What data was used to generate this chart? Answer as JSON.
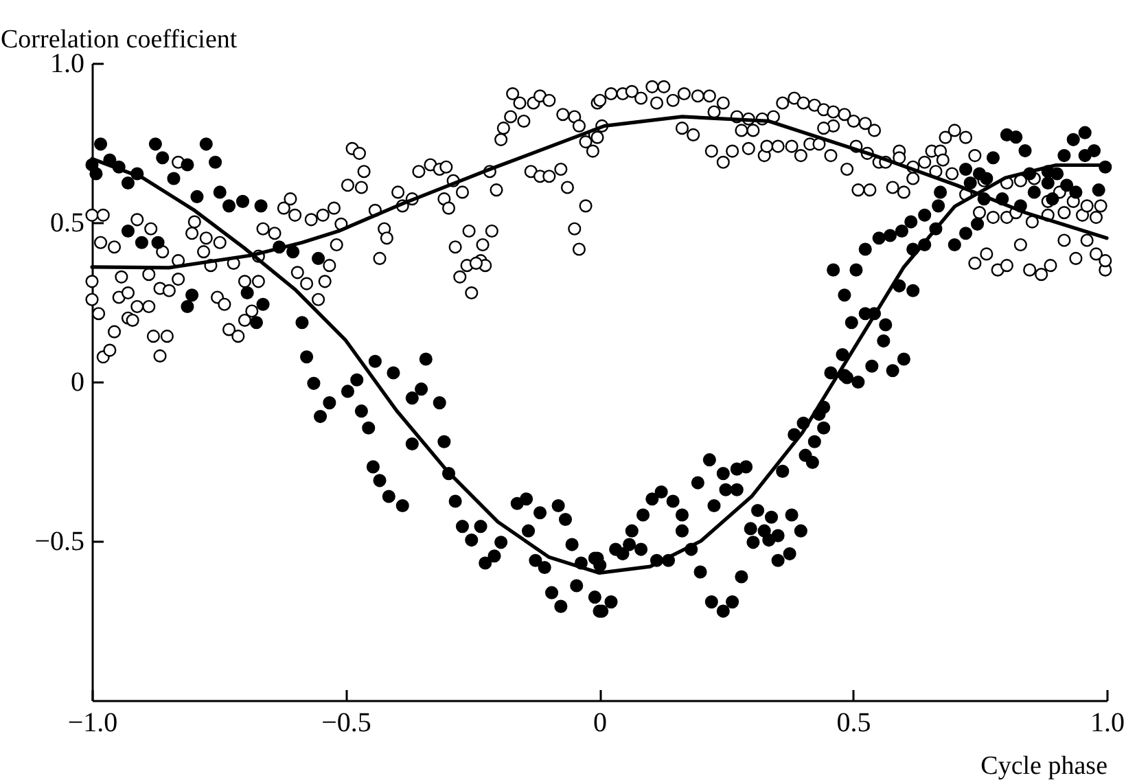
{
  "chart_data": {
    "type": "scatter",
    "xlabel": "Cycle phase",
    "ylabel": "Correlation coefficient",
    "marker": "circle",
    "xlim": [
      -1,
      1
    ],
    "ylim": [
      -1,
      1
    ],
    "xticks": [
      {
        "value": -1,
        "label": "−1.0"
      },
      {
        "value": -0.5,
        "label": "−0.5"
      },
      0,
      {
        "value": 0.5,
        "label": "0.5"
      },
      {
        "value": 1,
        "label": "1.0"
      }
    ],
    "yticks": [
      {
        "value": 1,
        "label": "1.0"
      },
      {
        "value": 0.5,
        "label": "0.5"
      },
      0,
      {
        "value": -0.5,
        "label": "−0.5"
      }
    ],
    "series": [
      {
        "color": "#ffffff",
        "x": [
          -1.0,
          -0.978,
          -1.0,
          -1.0,
          -0.987,
          -0.978,
          -0.965,
          -0.956,
          -0.983,
          -0.956,
          -0.947,
          -0.929,
          -0.929,
          -0.942,
          -0.92,
          -0.911,
          -0.888,
          -0.879,
          -0.866,
          -0.852,
          -0.866,
          -0.848,
          -0.83,
          -0.888,
          -0.884,
          -0.911,
          -0.861,
          -0.83,
          -0.803,
          -0.775,
          -0.748,
          -0.798,
          -0.78,
          -0.83,
          -0.766,
          -0.721,
          -0.753,
          -0.739,
          -0.73,
          -0.712,
          -0.699,
          -0.685,
          -0.699,
          -0.672,
          -0.663,
          -0.64,
          -0.672,
          -0.622,
          -0.609,
          -0.6,
          -0.595,
          -0.577,
          -0.554,
          -0.541,
          -0.532,
          -0.568,
          -0.545,
          -0.523,
          -0.509,
          -0.518,
          -0.496,
          -0.469,
          -0.487,
          -0.473,
          -0.464,
          -0.442,
          -0.433,
          -0.424,
          -0.419,
          -0.397,
          -0.388,
          -0.369,
          -0.356,
          -0.333,
          -0.315,
          -0.302,
          -0.306,
          -0.297,
          -0.27,
          -0.288,
          -0.257,
          -0.284,
          -0.275,
          -0.252,
          -0.261,
          -0.234,
          -0.225,
          -0.243,
          -0.23,
          -0.212,
          -0.216,
          -0.203,
          -0.194,
          -0.189,
          -0.171,
          -0.175,
          -0.157,
          -0.149,
          -0.13,
          -0.117,
          -0.099,
          -0.072,
          -0.049,
          -0.04,
          -0.027,
          -0.009,
          -0.135,
          -0.117,
          -0.099,
          -0.076,
          -0.063,
          -0.027,
          -0.049,
          -0.04,
          -0.004,
          -0.013,
          -0.004,
          0.005,
          0.001,
          0.023,
          0.046,
          0.064,
          0.082,
          0.104,
          0.127,
          0.113,
          0.145,
          0.167,
          0.194,
          0.217,
          0.244,
          0.226,
          0.271,
          0.294,
          0.321,
          0.343,
          0.28,
          0.303,
          0.163,
          0.185,
          0.221,
          0.244,
          0.262,
          0.294,
          0.325,
          0.33,
          0.352,
          0.379,
          0.397,
          0.361,
          0.384,
          0.402,
          0.424,
          0.442,
          0.461,
          0.483,
          0.501,
          0.524,
          0.542,
          0.461,
          0.442,
          0.415,
          0.433,
          0.456,
          0.488,
          0.506,
          0.528,
          0.51,
          0.533,
          0.551,
          0.564,
          0.578,
          0.6,
          0.591,
          0.591,
          0.618,
          0.618,
          0.641,
          0.655,
          0.672,
          0.663,
          0.677,
          0.682,
          0.7,
          0.722,
          0.74,
          0.695,
          0.722,
          0.749,
          0.776,
          0.803,
          0.821,
          0.853,
          0.884,
          0.916,
          0.952,
          0.979,
          0.758,
          0.803,
          0.83,
          0.857,
          0.884,
          0.907,
          0.934,
          0.961,
          0.988,
          0.74,
          0.763,
          0.785,
          0.803,
          0.83,
          0.848,
          0.871,
          0.889,
          0.916,
          0.939,
          0.961,
          0.979,
          0.997,
          0.997
        ],
        "values": [
          0.523,
          0.523,
          0.315,
          0.258,
          0.214,
          0.078,
          0.099,
          0.157,
          0.437,
          0.423,
          0.265,
          0.279,
          0.2,
          0.329,
          0.193,
          0.236,
          0.236,
          0.143,
          0.081,
          0.143,
          0.293,
          0.286,
          0.322,
          0.337,
          0.48,
          0.509,
          0.408,
          0.38,
          0.466,
          0.451,
          0.437,
          0.502,
          0.408,
          0.689,
          0.365,
          0.372,
          0.265,
          0.243,
          0.164,
          0.143,
          0.193,
          0.222,
          0.315,
          0.315,
          0.48,
          0.466,
          0.394,
          0.545,
          0.574,
          0.523,
          0.343,
          0.308,
          0.258,
          0.315,
          0.365,
          0.509,
          0.523,
          0.545,
          0.495,
          0.43,
          0.617,
          0.61,
          0.732,
          0.717,
          0.66,
          0.538,
          0.387,
          0.48,
          0.451,
          0.595,
          0.552,
          0.574,
          0.66,
          0.681,
          0.667,
          0.674,
          0.574,
          0.545,
          0.595,
          0.631,
          0.473,
          0.423,
          0.329,
          0.279,
          0.365,
          0.38,
          0.365,
          0.372,
          0.43,
          0.473,
          0.66,
          0.602,
          0.76,
          0.796,
          0.904,
          0.832,
          0.875,
          0.818,
          0.875,
          0.897,
          0.883,
          0.839,
          0.832,
          0.803,
          0.753,
          0.775,
          0.66,
          0.645,
          0.645,
          0.667,
          0.61,
          0.552,
          0.48,
          0.416,
          0.875,
          0.724,
          0.767,
          0.803,
          0.883,
          0.904,
          0.904,
          0.911,
          0.89,
          0.926,
          0.926,
          0.875,
          0.883,
          0.904,
          0.897,
          0.897,
          0.875,
          0.847,
          0.832,
          0.825,
          0.825,
          0.832,
          0.789,
          0.789,
          0.796,
          0.775,
          0.724,
          0.689,
          0.724,
          0.732,
          0.71,
          0.739,
          0.739,
          0.739,
          0.71,
          0.875,
          0.89,
          0.875,
          0.868,
          0.854,
          0.847,
          0.839,
          0.818,
          0.811,
          0.789,
          0.803,
          0.796,
          0.746,
          0.746,
          0.71,
          0.667,
          0.739,
          0.717,
          0.602,
          0.602,
          0.689,
          0.689,
          0.61,
          0.595,
          0.724,
          0.703,
          0.674,
          0.638,
          0.689,
          0.724,
          0.724,
          0.66,
          0.696,
          0.767,
          0.789,
          0.767,
          0.71,
          0.653,
          0.588,
          0.531,
          0.516,
          0.516,
          0.531,
          0.502,
          0.523,
          0.531,
          0.523,
          0.516,
          0.631,
          0.624,
          0.631,
          0.638,
          0.566,
          0.595,
          0.566,
          0.552,
          0.552,
          0.372,
          0.401,
          0.351,
          0.365,
          0.43,
          0.351,
          0.337,
          0.365,
          0.444,
          0.387,
          0.444,
          0.401,
          0.351,
          0.38
        ]
      },
      {
        "color": "#000000",
        "x": [
          -1.0,
          -0.983,
          -0.992,
          -0.965,
          -0.947,
          -0.929,
          -0.911,
          -0.875,
          -0.861,
          -0.839,
          -0.812,
          -0.775,
          -0.757,
          -0.793,
          -0.748,
          -0.73,
          -0.703,
          -0.667,
          -0.929,
          -0.902,
          -0.87,
          -0.812,
          -0.803,
          -0.676,
          -0.663,
          -0.694,
          -0.631,
          -0.604,
          -0.554,
          -0.586,
          -0.577,
          -0.563,
          -0.55,
          -0.532,
          -0.496,
          -0.478,
          -0.469,
          -0.455,
          -0.442,
          -0.406,
          -0.369,
          -0.342,
          -0.351,
          -0.315,
          -0.306,
          -0.446,
          -0.433,
          -0.415,
          -0.388,
          -0.369,
          -0.297,
          -0.284,
          -0.27,
          -0.252,
          -0.234,
          -0.225,
          -0.207,
          -0.194,
          -0.162,
          -0.144,
          -0.117,
          -0.081,
          -0.067,
          -0.14,
          -0.126,
          -0.108,
          -0.054,
          -0.036,
          -0.009,
          -0.094,
          -0.076,
          -0.045,
          -0.009,
          0.0,
          -0.004,
          0.001,
          0.032,
          0.046,
          0.059,
          0.064,
          0.082,
          0.086,
          0.104,
          0.122,
          0.145,
          0.163,
          0.163,
          0.113,
          0.136,
          0.181,
          0.194,
          0.217,
          0.226,
          0.244,
          0.249,
          0.271,
          0.271,
          0.289,
          0.199,
          0.221,
          0.244,
          0.262,
          0.28,
          0.023,
          0.005,
          0.298,
          0.303,
          0.312,
          0.325,
          0.339,
          0.334,
          0.352,
          0.352,
          0.375,
          0.379,
          0.397,
          0.361,
          0.384,
          0.402,
          0.406,
          0.42,
          0.424,
          0.433,
          0.442,
          0.442,
          0.456,
          0.479,
          0.488,
          0.51,
          0.537,
          0.578,
          0.6,
          0.483,
          0.56,
          0.497,
          0.524,
          0.542,
          0.564,
          0.483,
          0.461,
          0.506,
          0.591,
          0.618,
          0.524,
          0.551,
          0.573,
          0.596,
          0.614,
          0.641,
          0.668,
          0.672,
          0.618,
          0.641,
          0.663,
          0.7,
          0.722,
          0.745,
          0.722,
          0.749,
          0.763,
          0.776,
          0.803,
          0.821,
          0.839,
          0.848,
          0.884,
          0.902,
          0.916,
          0.934,
          0.957,
          0.975,
          0.997,
          0.984,
          0.939,
          0.921,
          0.884,
          0.857,
          0.83,
          0.794,
          0.758,
          0.731,
          0.893,
          0.957
        ],
        "values": [
          0.681,
          0.746,
          0.653,
          0.696,
          0.674,
          0.624,
          0.653,
          0.746,
          0.703,
          0.638,
          0.681,
          0.746,
          0.689,
          0.581,
          0.595,
          0.552,
          0.566,
          0.552,
          0.473,
          0.437,
          0.437,
          0.236,
          0.272,
          0.186,
          0.243,
          0.279,
          0.423,
          0.408,
          0.387,
          0.186,
          0.078,
          -0.005,
          -0.109,
          -0.066,
          -0.03,
          0.006,
          -0.092,
          -0.145,
          0.064,
          0.028,
          -0.051,
          0.071,
          -0.023,
          -0.066,
          -0.188,
          -0.267,
          -0.31,
          -0.36,
          -0.389,
          -0.195,
          -0.288,
          -0.375,
          -0.454,
          -0.497,
          -0.454,
          -0.569,
          -0.547,
          -0.504,
          -0.382,
          -0.368,
          -0.411,
          -0.389,
          -0.432,
          -0.468,
          -0.561,
          -0.583,
          -0.511,
          -0.569,
          -0.554,
          -0.662,
          -0.705,
          -0.64,
          -0.676,
          -0.72,
          -0.554,
          -0.576,
          -0.526,
          -0.54,
          -0.511,
          -0.468,
          -0.526,
          -0.418,
          -0.368,
          -0.346,
          -0.375,
          -0.418,
          -0.468,
          -0.561,
          -0.561,
          -0.526,
          -0.317,
          -0.245,
          -0.389,
          -0.288,
          -0.339,
          -0.339,
          -0.274,
          -0.267,
          -0.597,
          -0.691,
          -0.72,
          -0.691,
          -0.612,
          -0.691,
          -0.72,
          -0.461,
          -0.504,
          -0.404,
          -0.468,
          -0.425,
          -0.497,
          -0.483,
          -0.561,
          -0.54,
          -0.418,
          -0.468,
          -0.281,
          -0.166,
          -0.13,
          -0.231,
          -0.253,
          -0.188,
          -0.102,
          -0.08,
          -0.145,
          0.028,
          0.085,
          0.013,
          -0.001,
          0.049,
          0.035,
          0.071,
          0.02,
          0.128,
          0.186,
          0.214,
          0.214,
          0.179,
          0.272,
          0.351,
          0.351,
          0.301,
          0.286,
          0.416,
          0.451,
          0.459,
          0.473,
          0.502,
          0.523,
          0.552,
          0.595,
          0.416,
          0.43,
          0.48,
          0.43,
          0.466,
          0.495,
          0.667,
          0.653,
          0.638,
          0.703,
          0.775,
          0.768,
          0.725,
          0.653,
          0.66,
          0.653,
          0.71,
          0.76,
          0.782,
          0.725,
          0.674,
          0.602,
          0.595,
          0.617,
          0.624,
          0.595,
          0.552,
          0.574,
          0.574,
          0.624,
          0.574,
          0.71
        ]
      },
      {
        "type": "line",
        "marker": "none",
        "color": "#000000",
        "x": [
          -1,
          -0.848,
          -0.685,
          -0.586,
          -0.514,
          -0.388,
          -0.216,
          -0.036,
          0.01,
          0.163,
          0.334,
          0.542,
          0.704,
          0.839,
          1
        ],
        "values": [
          0.36,
          0.358,
          0.397,
          0.437,
          0.473,
          0.559,
          0.667,
          0.775,
          0.803,
          0.832,
          0.818,
          0.71,
          0.617,
          0.531,
          0.451
        ]
      },
      {
        "type": "line",
        "marker": "none",
        "color": "#000000",
        "x": [
          -1,
          -0.9,
          -0.8,
          -0.7,
          -0.6,
          -0.5,
          -0.4,
          -0.3,
          -0.2,
          -0.1,
          0,
          0.1,
          0.2,
          0.3,
          0.4,
          0.5,
          0.6,
          0.7,
          0.8,
          0.9,
          1
        ],
        "values": [
          0.7,
          0.64,
          0.54,
          0.42,
          0.29,
          0.13,
          -0.09,
          -0.28,
          -0.44,
          -0.55,
          -0.6,
          -0.58,
          -0.5,
          -0.36,
          -0.16,
          0.1,
          0.36,
          0.55,
          0.64,
          0.68,
          0.68
        ]
      }
    ]
  }
}
